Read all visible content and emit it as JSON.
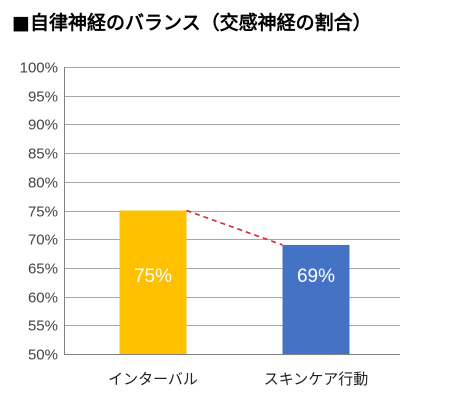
{
  "header": {
    "title": "■自律神経のバランス（交感神経の割合）"
  },
  "colors": {
    "bar_1": "#FFC000",
    "bar_2": "#4472C4",
    "gridline": "#A6A6A6",
    "axis": "#808080",
    "connector": "#D9262B",
    "data_label": "#FFFFFF"
  },
  "chart_data": {
    "type": "bar",
    "title": "自律神経のバランス（交感神経の割合）",
    "categories": [
      "インターバル",
      "スキンケア行動"
    ],
    "values": [
      75,
      69
    ],
    "data_labels": [
      "75%",
      "69%"
    ],
    "ylim": [
      50,
      100
    ],
    "yticks": [
      50,
      55,
      60,
      65,
      70,
      75,
      80,
      85,
      90,
      95,
      100
    ],
    "ytick_labels": [
      "50%",
      "55%",
      "60%",
      "65%",
      "70%",
      "75%",
      "80%",
      "85%",
      "90%",
      "95%",
      "100%"
    ],
    "xlabel": "",
    "ylabel": "",
    "grid": true,
    "legend": "none",
    "connector_line": "dashed"
  }
}
